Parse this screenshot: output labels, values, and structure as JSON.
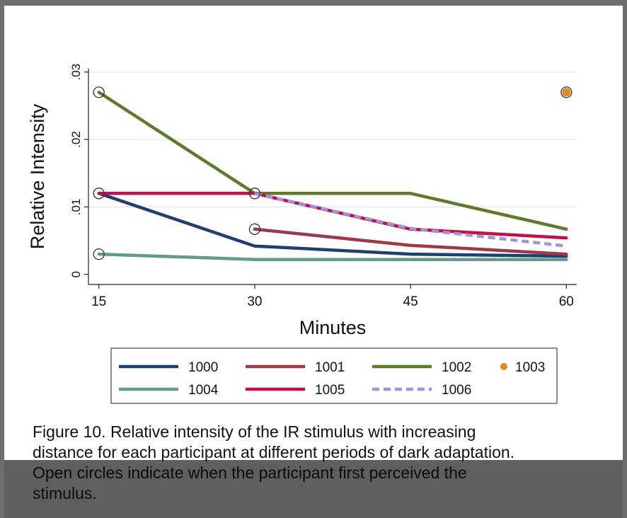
{
  "chart_data": {
    "type": "line",
    "title": "",
    "xlabel": "Minutes",
    "ylabel": "Relative Intensity",
    "x": [
      15,
      30,
      45,
      60
    ],
    "xlim": [
      14,
      61
    ],
    "ylim": [
      -0.0015,
      0.0305
    ],
    "xticks": [
      "15",
      "30",
      "45",
      "60"
    ],
    "yticks": [
      {
        "value": 0,
        "label": "0"
      },
      {
        "value": 0.01,
        "label": ".01"
      },
      {
        "value": 0.02,
        "label": ".02"
      },
      {
        "value": 0.03,
        "label": ".03"
      }
    ],
    "grid": true,
    "legend_position": "bottom",
    "series": [
      {
        "name": "1000",
        "color": "#1f3f6e",
        "style": "solid",
        "points": [
          [
            15,
            0.012
          ],
          [
            30,
            0.0042
          ],
          [
            45,
            0.003
          ],
          [
            60,
            0.0027
          ]
        ]
      },
      {
        "name": "1001",
        "color": "#9c3a47",
        "style": "solid",
        "points": [
          [
            30,
            0.0067
          ],
          [
            45,
            0.0043
          ],
          [
            60,
            0.003
          ]
        ]
      },
      {
        "name": "1002",
        "color": "#5f7a2c",
        "style": "solid",
        "points": [
          [
            15,
            0.027
          ],
          [
            30,
            0.012
          ],
          [
            45,
            0.012
          ],
          [
            60,
            0.0067
          ]
        ]
      },
      {
        "name": "1003",
        "color": "#e58a1f",
        "style": "marker",
        "points": [
          [
            60,
            0.027
          ]
        ]
      },
      {
        "name": "1004",
        "color": "#5f9a8a",
        "style": "solid",
        "points": [
          [
            15,
            0.003
          ],
          [
            30,
            0.0022
          ],
          [
            45,
            0.0022
          ],
          [
            60,
            0.0022
          ]
        ]
      },
      {
        "name": "1005",
        "color": "#c2114a",
        "style": "solid",
        "points": [
          [
            15,
            0.012
          ],
          [
            30,
            0.012
          ],
          [
            45,
            0.0067
          ],
          [
            60,
            0.0054
          ]
        ]
      },
      {
        "name": "1006",
        "color": "#9f94d9",
        "style": "dashed",
        "points": [
          [
            30,
            0.012
          ],
          [
            45,
            0.0068
          ],
          [
            60,
            0.0042
          ]
        ]
      }
    ],
    "first_perceived": [
      [
        15,
        0.027
      ],
      [
        15,
        0.012
      ],
      [
        15,
        0.003
      ],
      [
        30,
        0.012
      ],
      [
        30,
        0.0067
      ],
      [
        60,
        0.027
      ]
    ]
  },
  "caption": {
    "line1": "Figure 10. Relative intensity of the IR stimulus with increasing",
    "line2": "distance for each participant at different periods of dark adaptation.",
    "line3": "Open circles indicate when the participant first perceived the",
    "line4": "stimulus."
  }
}
